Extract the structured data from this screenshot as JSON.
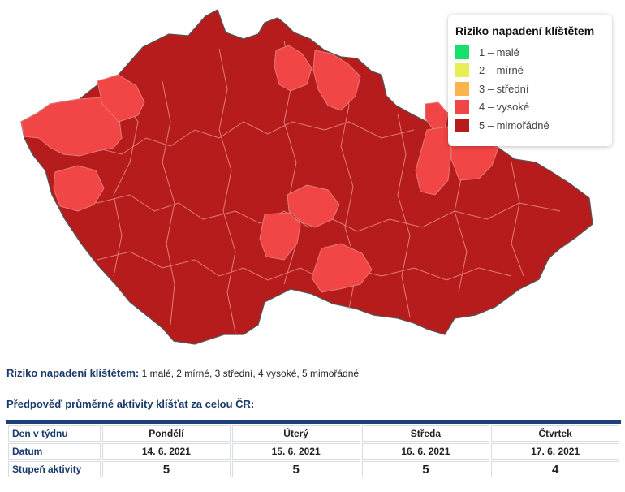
{
  "legend": {
    "title": "Riziko napadení klíštětem",
    "items": [
      {
        "label": "1 – malé",
        "color": "#15e06a"
      },
      {
        "label": "2 – mírné",
        "color": "#e8ef54"
      },
      {
        "label": "3 – střední",
        "color": "#fbb34c"
      },
      {
        "label": "4 – vysoké",
        "color": "#f24545"
      },
      {
        "label": "5 – mimořádné",
        "color": "#b71c1c"
      }
    ]
  },
  "map": {
    "level5_color": "#b71c1c",
    "level4_color": "#f24545",
    "district_border_color": "#e27b7b",
    "outline_color": "#555555"
  },
  "scale": {
    "label": "Riziko napadení klíštětem:",
    "text": "1 malé, 2 mírné, 3 střední, 4 vysoké, 5 mimořádné"
  },
  "forecast": {
    "title": "Předpověď průměrné aktivity klíšťat za celou ČR:",
    "row_labels": [
      "Den v týdnu",
      "Datum",
      "Stupeň aktivity"
    ],
    "days": [
      {
        "day": "Pondělí",
        "date": "14. 6. 2021",
        "level": "5"
      },
      {
        "day": "Úterý",
        "date": "15. 6. 2021",
        "level": "5"
      },
      {
        "day": "Středa",
        "date": "16. 6. 2021",
        "level": "5"
      },
      {
        "day": "Čtvrtek",
        "date": "17. 6. 2021",
        "level": "4"
      }
    ]
  }
}
